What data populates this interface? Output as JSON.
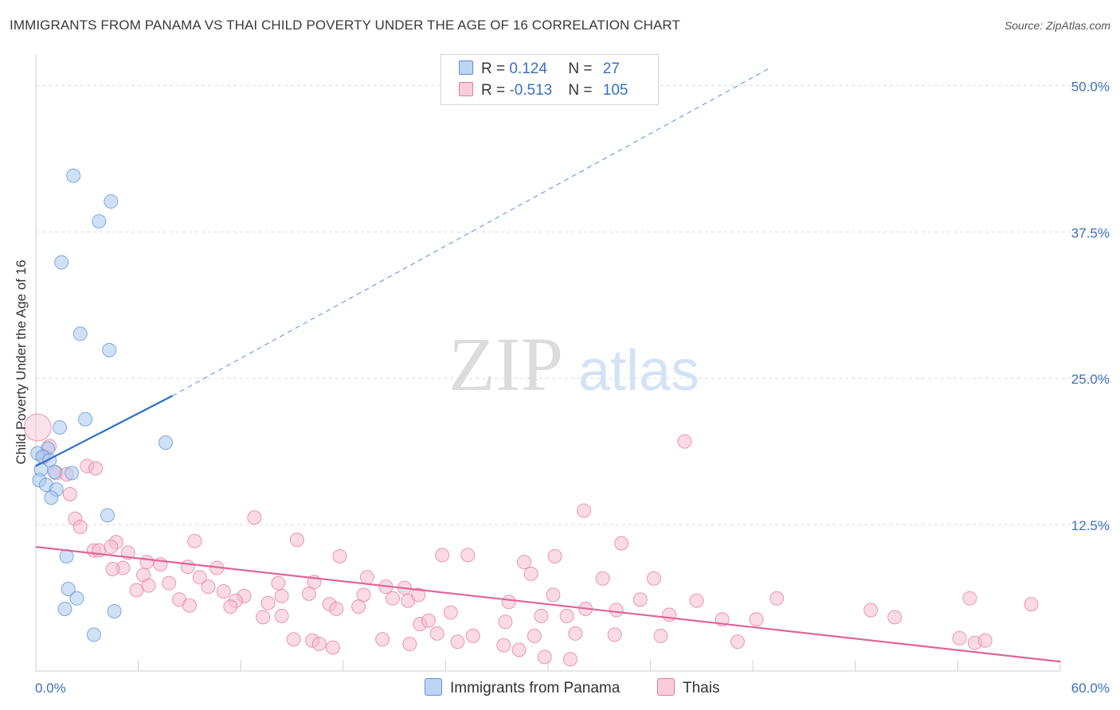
{
  "title": "IMMIGRANTS FROM PANAMA VS THAI CHILD POVERTY UNDER THE AGE OF 16 CORRELATION CHART",
  "source": "Source: ZipAtlas.com",
  "watermark": {
    "zip": "ZIP",
    "atlas": "atlas"
  },
  "colors": {
    "panama_fill": "#a9c8f0",
    "panama_stroke": "#5b8fd6",
    "panama_line": "#2a6fcf",
    "thai_fill": "#f6bcd0",
    "thai_stroke": "#e07aa0",
    "thai_line": "#e0649a",
    "value_text": "#3b6fc0",
    "grid": "#d9d9d9"
  },
  "legend": {
    "panama": {
      "r_label": "R = ",
      "r_value": "0.124",
      "n_label": "N = ",
      "n_value": "27"
    },
    "thai": {
      "r_label": "R = ",
      "r_value": "-0.513",
      "n_label": "N = ",
      "n_value": "105"
    }
  },
  "bottom_legend": {
    "panama": "Immigrants from Panama",
    "thai": "Thais"
  },
  "chart_data": {
    "type": "scatter",
    "title": "IMMIGRANTS FROM PANAMA VS THAI CHILD POVERTY UNDER THE AGE OF 16 CORRELATION CHART",
    "xlabel": "",
    "ylabel": "Child Poverty Under the Age of 16",
    "xlim": [
      0,
      60
    ],
    "ylim": [
      0,
      52
    ],
    "x_tick_labels": [
      "0.0%",
      "60.0%"
    ],
    "y_ticks": [
      12.5,
      25.0,
      37.5,
      50.0
    ],
    "y_tick_labels": [
      "12.5%",
      "25.0%",
      "37.5%",
      "50.0%"
    ],
    "grid": true,
    "legend_position": "top-center",
    "series": [
      {
        "name": "Immigrants from Panama",
        "r": 0.124,
        "n": 27,
        "trend": {
          "x0": 0.0,
          "y0": 17.5,
          "x1": 8.0,
          "y1": 23.5,
          "dashed_to_x": 43.0,
          "dashed_to_y": 51.5
        },
        "points": [
          [
            2.2,
            42.3
          ],
          [
            4.4,
            40.1
          ],
          [
            3.7,
            38.4
          ],
          [
            1.5,
            34.9
          ],
          [
            2.6,
            28.8
          ],
          [
            4.3,
            27.4
          ],
          [
            1.4,
            20.8
          ],
          [
            2.9,
            21.5
          ],
          [
            7.6,
            19.5
          ],
          [
            0.7,
            19.0
          ],
          [
            0.1,
            18.6
          ],
          [
            0.4,
            18.3
          ],
          [
            0.8,
            18.0
          ],
          [
            0.3,
            17.2
          ],
          [
            1.1,
            17.0
          ],
          [
            2.1,
            16.9
          ],
          [
            0.2,
            16.3
          ],
          [
            0.6,
            15.9
          ],
          [
            1.2,
            15.5
          ],
          [
            0.9,
            14.8
          ],
          [
            4.2,
            13.3
          ],
          [
            1.8,
            9.8
          ],
          [
            1.9,
            7.0
          ],
          [
            2.4,
            6.2
          ],
          [
            1.7,
            5.3
          ],
          [
            4.6,
            5.1
          ],
          [
            3.4,
            3.1
          ]
        ]
      },
      {
        "name": "Thais",
        "r": -0.513,
        "n": 105,
        "trend": {
          "x0": 0.0,
          "y0": 10.6,
          "x1": 60.0,
          "y1": 0.8
        },
        "points": [
          [
            0.1,
            20.8
          ],
          [
            0.8,
            19.2
          ],
          [
            0.5,
            18.3
          ],
          [
            3.0,
            17.5
          ],
          [
            1.2,
            16.9
          ],
          [
            1.8,
            16.8
          ],
          [
            2.0,
            15.1
          ],
          [
            38.0,
            19.6
          ],
          [
            3.5,
            17.3
          ],
          [
            32.1,
            13.7
          ],
          [
            2.3,
            13.0
          ],
          [
            12.8,
            13.1
          ],
          [
            2.6,
            12.3
          ],
          [
            15.3,
            11.2
          ],
          [
            9.3,
            11.1
          ],
          [
            34.3,
            10.9
          ],
          [
            4.7,
            11.0
          ],
          [
            3.4,
            10.3
          ],
          [
            3.7,
            10.3
          ],
          [
            4.4,
            10.6
          ],
          [
            5.4,
            10.1
          ],
          [
            17.8,
            9.8
          ],
          [
            23.8,
            9.9
          ],
          [
            25.3,
            9.9
          ],
          [
            28.6,
            9.3
          ],
          [
            30.4,
            9.8
          ],
          [
            6.5,
            9.3
          ],
          [
            7.3,
            9.1
          ],
          [
            5.1,
            8.8
          ],
          [
            4.5,
            8.7
          ],
          [
            8.9,
            8.9
          ],
          [
            10.6,
            8.8
          ],
          [
            6.3,
            8.2
          ],
          [
            9.6,
            8.0
          ],
          [
            19.4,
            8.0
          ],
          [
            29.0,
            8.3
          ],
          [
            33.2,
            7.9
          ],
          [
            36.2,
            7.9
          ],
          [
            7.8,
            7.5
          ],
          [
            6.6,
            7.3
          ],
          [
            10.1,
            7.2
          ],
          [
            14.2,
            7.5
          ],
          [
            16.3,
            7.6
          ],
          [
            20.5,
            7.2
          ],
          [
            21.6,
            7.1
          ],
          [
            5.9,
            6.9
          ],
          [
            11.0,
            6.8
          ],
          [
            12.2,
            6.4
          ],
          [
            14.4,
            6.4
          ],
          [
            16.0,
            6.6
          ],
          [
            19.2,
            6.5
          ],
          [
            20.9,
            6.2
          ],
          [
            21.8,
            6.0
          ],
          [
            22.4,
            6.5
          ],
          [
            30.3,
            6.5
          ],
          [
            35.4,
            6.1
          ],
          [
            38.7,
            6.0
          ],
          [
            8.4,
            6.1
          ],
          [
            11.7,
            6.0
          ],
          [
            13.6,
            5.8
          ],
          [
            17.2,
            5.7
          ],
          [
            18.9,
            5.5
          ],
          [
            27.7,
            5.9
          ],
          [
            11.4,
            5.5
          ],
          [
            9.0,
            5.6
          ],
          [
            17.6,
            5.3
          ],
          [
            32.2,
            5.3
          ],
          [
            43.4,
            6.2
          ],
          [
            48.9,
            5.2
          ],
          [
            54.7,
            6.2
          ],
          [
            58.3,
            5.7
          ],
          [
            24.3,
            5.0
          ],
          [
            29.6,
            4.7
          ],
          [
            34.0,
            5.2
          ],
          [
            13.3,
            4.6
          ],
          [
            14.4,
            4.7
          ],
          [
            31.1,
            4.7
          ],
          [
            37.1,
            4.8
          ],
          [
            40.2,
            4.4
          ],
          [
            42.2,
            4.4
          ],
          [
            50.3,
            4.6
          ],
          [
            22.5,
            4.0
          ],
          [
            23.0,
            4.3
          ],
          [
            27.5,
            4.2
          ],
          [
            29.2,
            3.0
          ],
          [
            31.6,
            3.2
          ],
          [
            33.9,
            3.1
          ],
          [
            36.6,
            3.0
          ],
          [
            23.5,
            3.2
          ],
          [
            25.6,
            3.0
          ],
          [
            16.2,
            2.6
          ],
          [
            15.1,
            2.7
          ],
          [
            20.3,
            2.7
          ],
          [
            21.9,
            2.3
          ],
          [
            24.7,
            2.5
          ],
          [
            41.1,
            2.5
          ],
          [
            54.1,
            2.8
          ],
          [
            55.0,
            2.4
          ],
          [
            55.6,
            2.6
          ],
          [
            16.6,
            2.3
          ],
          [
            17.4,
            2.0
          ],
          [
            27.4,
            2.2
          ],
          [
            28.3,
            1.8
          ],
          [
            29.8,
            1.2
          ],
          [
            31.3,
            1.0
          ]
        ]
      }
    ]
  }
}
